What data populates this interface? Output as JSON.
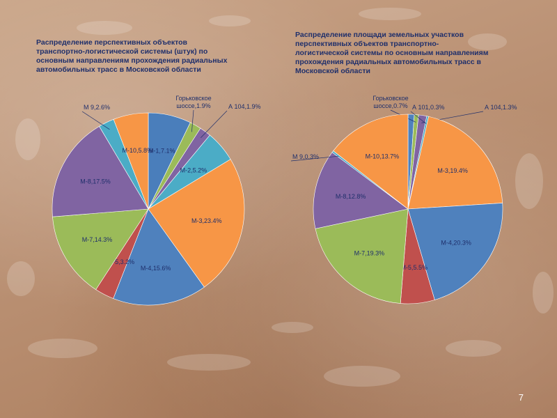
{
  "slide": {
    "title_left": "Распределение перспективных объектов\nтранспортно-логистической системы (штук) по\nосновным направлениям прохождения радиальных\nавтомобильных трасс в Московской области",
    "title_right": "Распределение площади земельных участков\nперспективных объектов транспортно-\nлогистической системы  по основным направлениям\nпрохождения радиальных автомобильных трасс в\nМосковской области",
    "page_number": "7",
    "background_color": "#b8906f",
    "text_color": "#1f2f6b"
  },
  "chart_data": [
    {
      "type": "pie",
      "title": "Распределение перспективных объектов транспортно-логистической системы (штук) по основным направлениям прохождения радиальных автомобильных трасс в Московской области",
      "start_angle_deg": 0,
      "direction": "clockwise",
      "slices": [
        {
          "name": "М-1",
          "label": "М-1,7.1%",
          "value": 7.1,
          "color": "#4a7ebb"
        },
        {
          "name": "Горьковское шоссе",
          "label": "Горьковское\nшоссе,1.9%",
          "value": 1.9,
          "color": "#9bbb59"
        },
        {
          "name": "А 104",
          "label": "А 104,1.9%",
          "value": 1.9,
          "color": "#8064a2"
        },
        {
          "name": "М-2",
          "label": "М-2,5.2%",
          "value": 5.2,
          "color": "#4bacc6"
        },
        {
          "name": "М-3",
          "label": "М-3,23.4%",
          "value": 23.4,
          "color": "#f79646"
        },
        {
          "name": "М-4",
          "label": "М-4,15.6%",
          "value": 15.6,
          "color": "#4f81bd"
        },
        {
          "name": "М-5",
          "label": "М-5,3.2%",
          "value": 3.2,
          "color": "#c0504d"
        },
        {
          "name": "М-7",
          "label": "М-7,14.3%",
          "value": 14.3,
          "color": "#9bbb59"
        },
        {
          "name": "М-8",
          "label": "М-8,17.5%",
          "value": 17.5,
          "color": "#8064a2"
        },
        {
          "name": "М 9",
          "label": "М 9,2.6%",
          "value": 2.6,
          "color": "#4bacc6"
        },
        {
          "name": "М-10",
          "label": "М-10,5.8%",
          "value": 5.8,
          "color": "#f79646"
        }
      ]
    },
    {
      "type": "pie",
      "title": "Распределение площади земельных участков перспективных объектов транспортно-логистической системы по основным направлениям прохождения радиальных автомобильных трасс в Московской области",
      "start_angle_deg": 0,
      "direction": "clockwise",
      "slices": [
        {
          "name": "М-1",
          "label": "М-1,1.0%",
          "value": 1.0,
          "color": "#4f81bd"
        },
        {
          "name": "Горьковское шоссе",
          "label": "Горьковское\nшоссе,0.7%",
          "value": 0.7,
          "color": "#9bbb59"
        },
        {
          "name": "А 104",
          "label": "А 104,1.3%",
          "value": 1.3,
          "color": "#8064a2"
        },
        {
          "name": "А 101",
          "label": "А 101,0.3%",
          "value": 0.3,
          "color": "#4bacc6"
        },
        {
          "name": "М-3",
          "label": "М-3,19.4%",
          "value": 19.4,
          "color": "#f79646"
        },
        {
          "name": "М-4",
          "label": "М-4,20.3%",
          "value": 20.3,
          "color": "#4f81bd"
        },
        {
          "name": "М-5",
          "label": "М-5,5.5%",
          "value": 5.5,
          "color": "#c0504d"
        },
        {
          "name": "М-7",
          "label": "М-7,19.3%",
          "value": 19.3,
          "color": "#9bbb59"
        },
        {
          "name": "М-8",
          "label": "М-8,12.8%",
          "value": 12.8,
          "color": "#8064a2"
        },
        {
          "name": "М 9",
          "label": "М 9,0.3%",
          "value": 0.3,
          "color": "#4bacc6"
        },
        {
          "name": "М-10",
          "label": "М-10,13.7%",
          "value": 13.7,
          "color": "#f79646"
        }
      ]
    }
  ]
}
